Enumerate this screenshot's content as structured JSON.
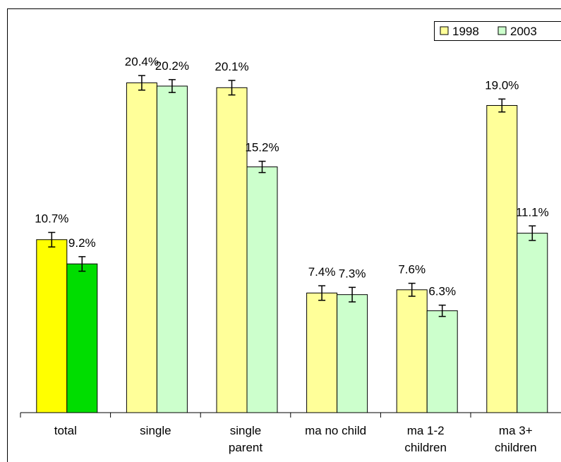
{
  "chart_data": {
    "type": "bar",
    "categories": [
      "total",
      "single",
      "single\nparent",
      "ma no child",
      "ma 1-2\nchildren",
      "ma 3+\nchildren"
    ],
    "series": [
      {
        "name": "1998",
        "color": "#ffff99",
        "colors": [
          "#ffff00",
          "#ffff99",
          "#ffff99",
          "#ffff99",
          "#ffff99",
          "#ffff99"
        ],
        "values": [
          10.7,
          20.4,
          20.1,
          7.4,
          7.6,
          19.0
        ],
        "errors": [
          0.45,
          0.45,
          0.45,
          0.45,
          0.4,
          0.4
        ],
        "value_labels": [
          "10.7%",
          "20.4%",
          "20.1%",
          "7.4%",
          "7.6%",
          "19.0%"
        ]
      },
      {
        "name": "2003",
        "color": "#ccffcc",
        "colors": [
          "#00dd00",
          "#ccffcc",
          "#ccffcc",
          "#ccffcc",
          "#ccffcc",
          "#ccffcc"
        ],
        "values": [
          9.2,
          20.2,
          15.2,
          7.3,
          6.3,
          11.1
        ],
        "errors": [
          0.45,
          0.4,
          0.35,
          0.45,
          0.35,
          0.45
        ],
        "value_labels": [
          "9.2%",
          "20.2%",
          "15.2%",
          "7.3%",
          "6.3%",
          "11.1%"
        ]
      }
    ],
    "ylim": [
      0,
      25
    ],
    "legend": "top-right"
  }
}
